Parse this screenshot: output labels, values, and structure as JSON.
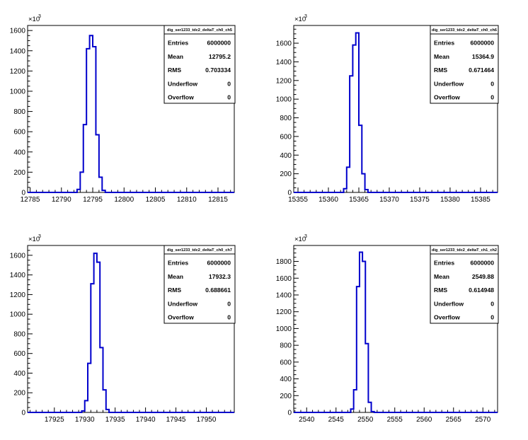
{
  "chart_data": [
    {
      "type": "histogram",
      "stats_title": "dig_ser1233_tdc2_deltaT_ch0_ch5",
      "stats": [
        {
          "label": "Entries",
          "value": "6000000"
        },
        {
          "label": "Mean",
          "value": "12795.2"
        },
        {
          "label": "RMS",
          "value": "0.703334"
        },
        {
          "label": "Underflow",
          "value": "0"
        },
        {
          "label": "Overflow",
          "value": "0"
        }
      ],
      "y_multiplier": "×10",
      "y_exponent": "3",
      "xlim": [
        12784.6,
        12817.6
      ],
      "ylim": [
        0,
        1650
      ],
      "x_ticks": [
        12785,
        12790,
        12795,
        12800,
        12805,
        12810,
        12815
      ],
      "y_ticks": [
        0,
        200,
        400,
        600,
        800,
        1000,
        1200,
        1400,
        1600
      ],
      "bin_width": 0.5,
      "bin_edges_start": 12792.5,
      "bin_values": [
        30,
        200,
        670,
        1420,
        1550,
        1440,
        570,
        150,
        20,
        0
      ],
      "line_color": "#0000cc"
    },
    {
      "type": "histogram",
      "stats_title": "dig_ser1233_tdc2_deltaT_ch0_ch6",
      "stats": [
        {
          "label": "Entries",
          "value": "6000000"
        },
        {
          "label": "Mean",
          "value": "15364.9"
        },
        {
          "label": "RMS",
          "value": "0.671464"
        },
        {
          "label": "Underflow",
          "value": "0"
        },
        {
          "label": "Overflow",
          "value": "0"
        }
      ],
      "y_multiplier": "×10",
      "y_exponent": "3",
      "xlim": [
        15354.3,
        15387.8
      ],
      "ylim": [
        0,
        1790
      ],
      "x_ticks": [
        15355,
        15360,
        15365,
        15370,
        15375,
        15380,
        15385
      ],
      "y_ticks": [
        0,
        200,
        400,
        600,
        800,
        1000,
        1200,
        1400,
        1600
      ],
      "bin_width": 0.5,
      "bin_edges_start": 15362.5,
      "bin_values": [
        40,
        270,
        1250,
        1580,
        1710,
        720,
        200,
        30
      ],
      "line_color": "#0000cc"
    },
    {
      "type": "histogram",
      "stats_title": "dig_ser1233_tdc2_deltaT_ch0_ch7",
      "stats": [
        {
          "label": "Entries",
          "value": "6000000"
        },
        {
          "label": "Mean",
          "value": "17932.3"
        },
        {
          "label": "RMS",
          "value": "0.688661"
        },
        {
          "label": "Underflow",
          "value": "0"
        },
        {
          "label": "Overflow",
          "value": "0"
        }
      ],
      "y_multiplier": "×10",
      "y_exponent": "3",
      "xlim": [
        17920.6,
        17954.6
      ],
      "ylim": [
        0,
        1700
      ],
      "x_ticks": [
        17925,
        17930,
        17935,
        17940,
        17945,
        17950
      ],
      "y_ticks": [
        0,
        200,
        400,
        600,
        800,
        1000,
        1200,
        1400,
        1600
      ],
      "bin_width": 0.5,
      "bin_edges_start": 17929.5,
      "bin_values": [
        15,
        120,
        500,
        1310,
        1620,
        1530,
        660,
        230,
        30
      ],
      "line_color": "#0000cc"
    },
    {
      "type": "histogram",
      "stats_title": "dig_ser1233_tdc2_deltaT_ch1_ch2",
      "stats": [
        {
          "label": "Entries",
          "value": "6000000"
        },
        {
          "label": "Mean",
          "value": "2549.88"
        },
        {
          "label": "RMS",
          "value": "0.614948"
        },
        {
          "label": "Underflow",
          "value": "0"
        },
        {
          "label": "Overflow",
          "value": "0"
        }
      ],
      "y_multiplier": "×10",
      "y_exponent": "3",
      "xlim": [
        2537.8,
        2572.5
      ],
      "ylim": [
        0,
        1990
      ],
      "x_ticks": [
        2540,
        2545,
        2550,
        2555,
        2560,
        2565,
        2570
      ],
      "y_ticks": [
        0,
        200,
        400,
        600,
        800,
        1000,
        1200,
        1400,
        1600,
        1800
      ],
      "bin_width": 0.5,
      "bin_edges_start": 2547.5,
      "bin_values": [
        40,
        270,
        1500,
        1910,
        1800,
        820,
        120,
        10
      ],
      "line_color": "#0000cc"
    }
  ]
}
